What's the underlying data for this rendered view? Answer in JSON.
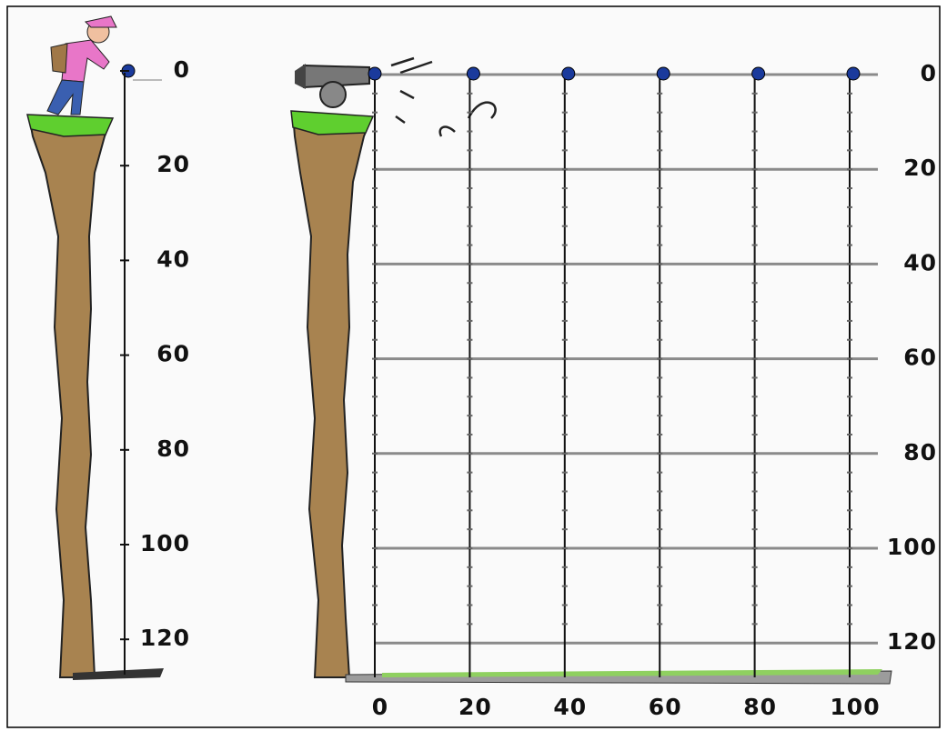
{
  "left_scale": {
    "labels": [
      0,
      20,
      40,
      60,
      80,
      100,
      120
    ]
  },
  "right_scale": {
    "labels": [
      0,
      20,
      40,
      60,
      80,
      100,
      120
    ]
  },
  "bottom_scale": {
    "labels": [
      0,
      20,
      40,
      60,
      80,
      100
    ]
  }
}
